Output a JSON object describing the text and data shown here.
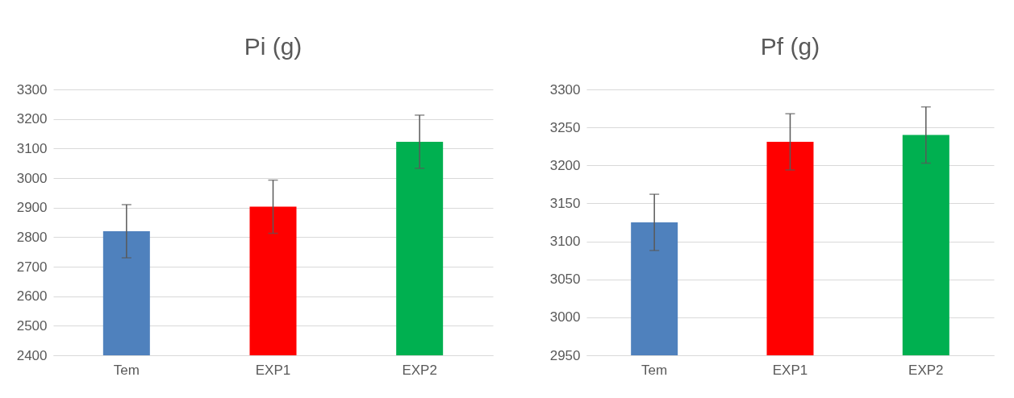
{
  "chart_data": [
    {
      "type": "bar",
      "title": "Pi (g)",
      "categories": [
        "Tem",
        "EXP1",
        "EXP2"
      ],
      "values": [
        2820,
        2903,
        3123
      ],
      "errors": [
        90,
        90,
        90
      ],
      "colors": [
        "#4f81bd",
        "#ff0000",
        "#00b050"
      ],
      "ylim": [
        2400,
        3300
      ],
      "yticks": [
        2400,
        2500,
        2600,
        2700,
        2800,
        2900,
        3000,
        3100,
        3200,
        3300
      ],
      "grid": "y"
    },
    {
      "type": "bar",
      "title": "Pf (g)",
      "categories": [
        "Tem",
        "EXP1",
        "EXP2"
      ],
      "values": [
        3125,
        3231,
        3240
      ],
      "errors": [
        37,
        37,
        37
      ],
      "colors": [
        "#4f81bd",
        "#ff0000",
        "#00b050"
      ],
      "ylim": [
        2950,
        3300
      ],
      "yticks": [
        2950,
        3000,
        3050,
        3100,
        3150,
        3200,
        3250,
        3300
      ],
      "grid": "y"
    }
  ]
}
